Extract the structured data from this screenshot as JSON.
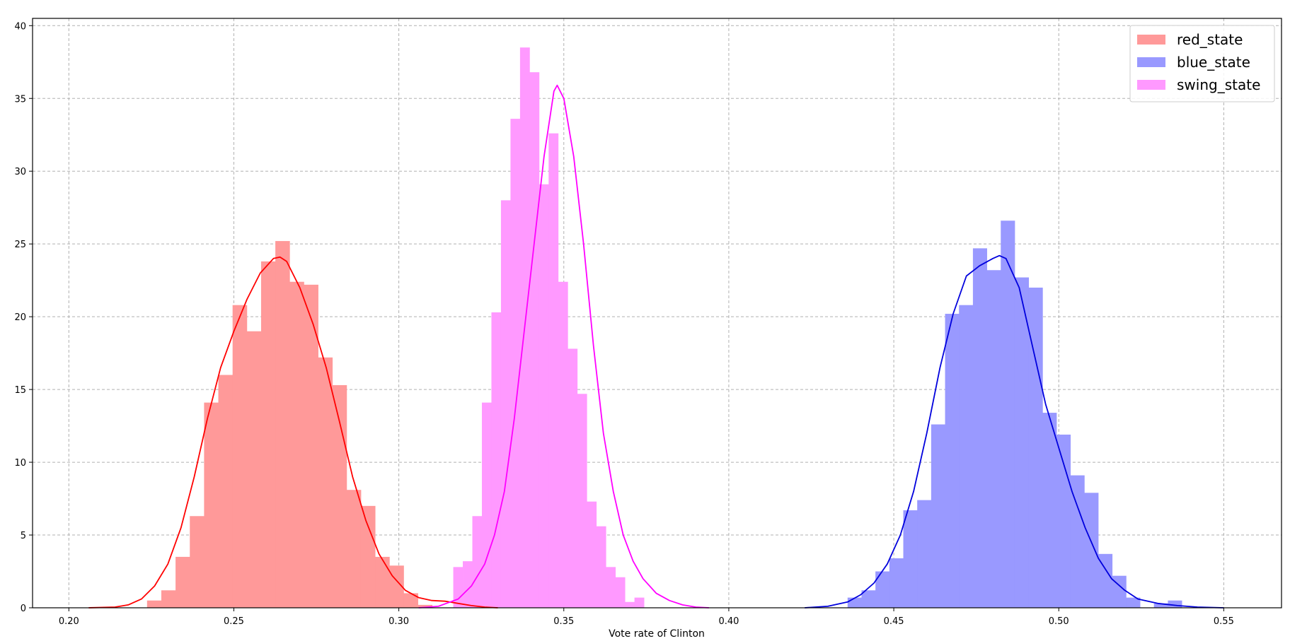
{
  "chart_data": {
    "type": "histogram",
    "xlabel": "Vote rate of Clinton",
    "ylabel": "",
    "xlim": [
      0.189,
      0.5675
    ],
    "ylim": [
      0,
      40.5
    ],
    "x_ticks": [
      0.2,
      0.25,
      0.3,
      0.35,
      0.4,
      0.45,
      0.5,
      0.55
    ],
    "x_tick_labels": [
      "0.20",
      "0.25",
      "0.30",
      "0.35",
      "0.40",
      "0.45",
      "0.50",
      "0.55"
    ],
    "y_ticks": [
      0,
      5,
      10,
      15,
      20,
      25,
      30,
      35,
      40
    ],
    "y_tick_labels": [
      "0",
      "5",
      "10",
      "15",
      "20",
      "25",
      "30",
      "35",
      "40"
    ],
    "grid": true,
    "legend_position": "top-right",
    "series": [
      {
        "name": "red_state",
        "hist_color": "#ff9999",
        "kde_color": "#ff0000",
        "bin_start": 0.2237,
        "bin_width": 0.00432,
        "heights": [
          0.5,
          1.2,
          3.5,
          6.3,
          14.1,
          16.0,
          20.8,
          19.0,
          23.8,
          25.2,
          22.4,
          22.2,
          17.2,
          15.3,
          8.1,
          7.0,
          3.5,
          2.9,
          1.0,
          0.2,
          0.0,
          0.0,
          0.2,
          0.7,
          0.7
        ],
        "kde": [
          [
            0.206,
            0.0
          ],
          [
            0.214,
            0.05
          ],
          [
            0.218,
            0.2
          ],
          [
            0.222,
            0.6
          ],
          [
            0.226,
            1.5
          ],
          [
            0.23,
            3.0
          ],
          [
            0.234,
            5.5
          ],
          [
            0.238,
            9.0
          ],
          [
            0.242,
            13.0
          ],
          [
            0.246,
            16.5
          ],
          [
            0.25,
            19.0
          ],
          [
            0.254,
            21.2
          ],
          [
            0.258,
            23.0
          ],
          [
            0.262,
            24.0
          ],
          [
            0.264,
            24.1
          ],
          [
            0.266,
            23.8
          ],
          [
            0.27,
            22.0
          ],
          [
            0.274,
            19.5
          ],
          [
            0.278,
            16.5
          ],
          [
            0.282,
            12.8
          ],
          [
            0.286,
            9.0
          ],
          [
            0.29,
            6.0
          ],
          [
            0.294,
            3.7
          ],
          [
            0.298,
            2.2
          ],
          [
            0.302,
            1.2
          ],
          [
            0.306,
            0.7
          ],
          [
            0.31,
            0.5
          ],
          [
            0.314,
            0.45
          ],
          [
            0.318,
            0.3
          ],
          [
            0.322,
            0.15
          ],
          [
            0.326,
            0.05
          ],
          [
            0.33,
            0.0
          ]
        ]
      },
      {
        "name": "blue_state",
        "hist_color": "#9999ff",
        "kde_color": "#0000dd",
        "bin_start": 0.436,
        "bin_width": 0.00422,
        "heights": [
          0.7,
          1.2,
          2.5,
          3.4,
          6.7,
          7.4,
          12.6,
          20.2,
          20.8,
          24.7,
          23.2,
          26.6,
          22.7,
          22.0,
          13.4,
          11.9,
          9.1,
          7.9,
          3.7,
          2.2,
          0.7,
          0.0,
          0.3,
          0.5
        ],
        "kde": [
          [
            0.423,
            0.0
          ],
          [
            0.43,
            0.1
          ],
          [
            0.436,
            0.4
          ],
          [
            0.44,
            0.9
          ],
          [
            0.444,
            1.7
          ],
          [
            0.448,
            3.0
          ],
          [
            0.452,
            5.0
          ],
          [
            0.456,
            8.0
          ],
          [
            0.46,
            12.0
          ],
          [
            0.464,
            16.5
          ],
          [
            0.468,
            20.2
          ],
          [
            0.472,
            22.8
          ],
          [
            0.476,
            23.5
          ],
          [
            0.48,
            24.0
          ],
          [
            0.482,
            24.2
          ],
          [
            0.484,
            24.0
          ],
          [
            0.488,
            22.0
          ],
          [
            0.492,
            18.0
          ],
          [
            0.496,
            14.0
          ],
          [
            0.5,
            11.0
          ],
          [
            0.504,
            8.0
          ],
          [
            0.508,
            5.5
          ],
          [
            0.512,
            3.4
          ],
          [
            0.516,
            2.0
          ],
          [
            0.52,
            1.2
          ],
          [
            0.524,
            0.6
          ],
          [
            0.53,
            0.3
          ],
          [
            0.536,
            0.15
          ],
          [
            0.542,
            0.05
          ],
          [
            0.55,
            0.0
          ]
        ]
      },
      {
        "name": "swing_state",
        "hist_color": "#ff99ff",
        "kde_color": "#ff00ff",
        "bin_start": 0.3165,
        "bin_width": 0.00289,
        "heights": [
          2.8,
          3.2,
          6.3,
          14.1,
          20.3,
          28.0,
          33.6,
          38.5,
          36.8,
          29.1,
          32.6,
          22.4,
          17.8,
          14.7,
          7.3,
          5.6,
          2.8,
          2.1,
          0.4,
          0.7
        ],
        "kde": [
          [
            0.306,
            0.0
          ],
          [
            0.312,
            0.1
          ],
          [
            0.318,
            0.6
          ],
          [
            0.322,
            1.5
          ],
          [
            0.326,
            3.0
          ],
          [
            0.329,
            5.0
          ],
          [
            0.332,
            8.0
          ],
          [
            0.335,
            13.0
          ],
          [
            0.338,
            19.0
          ],
          [
            0.341,
            25.0
          ],
          [
            0.344,
            31.0
          ],
          [
            0.347,
            35.5
          ],
          [
            0.348,
            35.9
          ],
          [
            0.35,
            35.0
          ],
          [
            0.353,
            31.0
          ],
          [
            0.356,
            25.0
          ],
          [
            0.359,
            18.0
          ],
          [
            0.362,
            12.0
          ],
          [
            0.365,
            8.0
          ],
          [
            0.368,
            5.0
          ],
          [
            0.371,
            3.2
          ],
          [
            0.374,
            2.0
          ],
          [
            0.378,
            1.0
          ],
          [
            0.382,
            0.5
          ],
          [
            0.386,
            0.2
          ],
          [
            0.39,
            0.05
          ],
          [
            0.394,
            0.0
          ]
        ]
      }
    ]
  }
}
